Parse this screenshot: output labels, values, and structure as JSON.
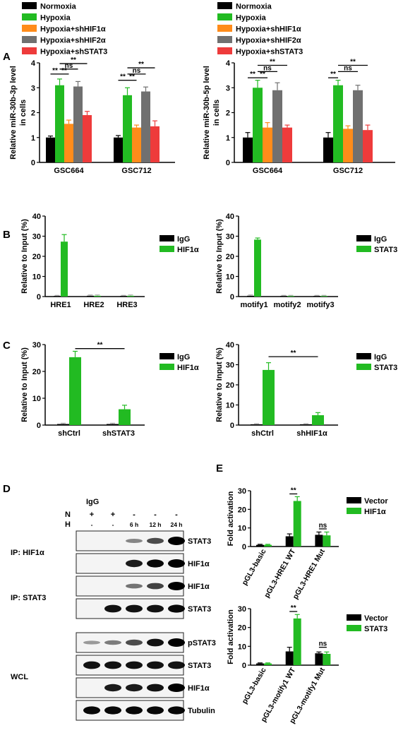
{
  "colors": {
    "black": "#000000",
    "green": "#22bb22",
    "orange": "#ff8c1a",
    "gray": "#707070",
    "red": "#ee3b3b",
    "lightgray": "#aaaaaa"
  },
  "panel_letters": [
    "A",
    "B",
    "C",
    "D",
    "E"
  ],
  "legend_A": [
    "Normoxia",
    "Hypoxia",
    "Hypoxia+shHIF1α",
    "Hypoxia+shHIF2α",
    "Hypoxia+shSTAT3"
  ],
  "chart_data": [
    {
      "id": "A_left",
      "type": "bar",
      "ylabel": "Relative miR-30b-3p level in cells",
      "ylabel_lines": [
        "Relative miR-30b-3p level",
        "in cells"
      ],
      "ylim": [
        0,
        4
      ],
      "yticks": [
        0,
        1,
        2,
        3,
        4
      ],
      "categories": [
        "GSC664",
        "GSC712"
      ],
      "series": [
        {
          "name": "Normoxia",
          "values": [
            1.0,
            1.0
          ],
          "err": [
            0.06,
            0.08
          ]
        },
        {
          "name": "Hypoxia",
          "values": [
            3.1,
            2.7
          ],
          "err": [
            0.25,
            0.3
          ]
        },
        {
          "name": "Hypoxia+shHIF1α",
          "values": [
            1.55,
            1.4
          ],
          "err": [
            0.15,
            0.1
          ]
        },
        {
          "name": "Hypoxia+shHIF2α",
          "values": [
            3.05,
            2.85
          ],
          "err": [
            0.2,
            0.18
          ]
        },
        {
          "name": "Hypoxia+shSTAT3",
          "values": [
            1.9,
            1.45
          ],
          "err": [
            0.15,
            0.22
          ]
        }
      ],
      "annotations": [
        {
          "label": "**",
          "x1": [
            0,
            0
          ],
          "x2": [
            0,
            1
          ],
          "y": 3.55
        },
        {
          "label": "**",
          "x1": [
            0,
            1
          ],
          "x2": [
            0,
            2
          ],
          "y": 3.55
        },
        {
          "label": "ns",
          "x1": [
            0,
            1
          ],
          "x2": [
            0,
            3
          ],
          "y": 3.75
        },
        {
          "label": "**",
          "x1": [
            0,
            1
          ],
          "x2": [
            0,
            4
          ],
          "y": 3.97
        },
        {
          "label": "**",
          "x1": [
            1,
            0
          ],
          "x2": [
            1,
            1
          ],
          "y": 3.3
        },
        {
          "label": "**",
          "x1": [
            1,
            1
          ],
          "x2": [
            1,
            2
          ],
          "y": 3.3
        },
        {
          "label": "ns",
          "x1": [
            1,
            1
          ],
          "x2": [
            1,
            3
          ],
          "y": 3.55
        },
        {
          "label": "**",
          "x1": [
            1,
            1
          ],
          "x2": [
            1,
            4
          ],
          "y": 3.8
        }
      ]
    },
    {
      "id": "A_right",
      "type": "bar",
      "ylabel": "Relative miR-30b-5p level in cells",
      "ylabel_lines": [
        "Relative miR-30b-5p level",
        "in cells"
      ],
      "ylim": [
        0,
        4
      ],
      "yticks": [
        0,
        1,
        2,
        3,
        4
      ],
      "categories": [
        "GSC664",
        "GSC712"
      ],
      "series": [
        {
          "name": "Normoxia",
          "values": [
            1.0,
            1.0
          ],
          "err": [
            0.2,
            0.2
          ]
        },
        {
          "name": "Hypoxia",
          "values": [
            3.0,
            3.1
          ],
          "err": [
            0.3,
            0.2
          ]
        },
        {
          "name": "Hypoxia+shHIF1α",
          "values": [
            1.4,
            1.35
          ],
          "err": [
            0.2,
            0.12
          ]
        },
        {
          "name": "Hypoxia+shHIF2α",
          "values": [
            2.9,
            2.9
          ],
          "err": [
            0.3,
            0.2
          ]
        },
        {
          "name": "Hypoxia+shSTAT3",
          "values": [
            1.4,
            1.3
          ],
          "err": [
            0.1,
            0.2
          ]
        }
      ],
      "annotations": [
        {
          "label": "**",
          "x1": [
            0,
            0
          ],
          "x2": [
            0,
            1
          ],
          "y": 3.4
        },
        {
          "label": "**",
          "x1": [
            0,
            1
          ],
          "x2": [
            0,
            2
          ],
          "y": 3.4
        },
        {
          "label": "ns",
          "x1": [
            0,
            1
          ],
          "x2": [
            0,
            3
          ],
          "y": 3.65
        },
        {
          "label": "**",
          "x1": [
            0,
            1
          ],
          "x2": [
            0,
            4
          ],
          "y": 3.9
        },
        {
          "label": "**",
          "x1": [
            1,
            0
          ],
          "x2": [
            1,
            1
          ],
          "y": 3.4
        },
        {
          "label": "ns",
          "x1": [
            1,
            1
          ],
          "x2": [
            1,
            3
          ],
          "y": 3.65
        },
        {
          "label": "**",
          "x1": [
            1,
            1
          ],
          "x2": [
            1,
            4
          ],
          "y": 3.9
        }
      ]
    },
    {
      "id": "B_left",
      "type": "bar",
      "ylabel": "Relative to Input (%)",
      "ylim": [
        0,
        40
      ],
      "yticks": [
        0,
        10,
        20,
        30,
        40
      ],
      "categories": [
        "HRE1",
        "HRE2",
        "HRE3"
      ],
      "series": [
        {
          "name": "IgG",
          "values": [
            0.3,
            0.4,
            0.3
          ],
          "err": [
            0.3,
            0.4,
            0.3
          ]
        },
        {
          "name": "HIF1α",
          "values": [
            27.3,
            0.4,
            0.4
          ],
          "err": [
            3.5,
            0.4,
            0.4
          ]
        }
      ]
    },
    {
      "id": "B_right",
      "type": "bar",
      "ylabel": "Relative to Input (%)",
      "ylim": [
        0,
        40
      ],
      "yticks": [
        0,
        10,
        20,
        30,
        40
      ],
      "categories": [
        "motify1",
        "motify2",
        "motify3"
      ],
      "series": [
        {
          "name": "IgG",
          "values": [
            0.4,
            0.3,
            0.3
          ],
          "err": [
            0.4,
            0.3,
            0.3
          ]
        },
        {
          "name": "STAT3",
          "values": [
            28.3,
            0.3,
            0.3
          ],
          "err": [
            0.8,
            0.3,
            0.3
          ]
        }
      ]
    },
    {
      "id": "C_left",
      "type": "bar",
      "ylabel": "Relative to Input (%)",
      "ylim": [
        0,
        30
      ],
      "yticks": [
        0,
        10,
        20,
        30
      ],
      "categories": [
        "shCtrl",
        "shSTAT3"
      ],
      "series": [
        {
          "name": "IgG",
          "values": [
            0.4,
            0.4
          ],
          "err": [
            0.3,
            0.3
          ]
        },
        {
          "name": "HIF1α",
          "values": [
            25.3,
            5.9
          ],
          "err": [
            2.2,
            1.5
          ]
        }
      ],
      "annotations": [
        {
          "label": "**",
          "x1": [
            0,
            1
          ],
          "x2": [
            1,
            1
          ],
          "y": 28.5
        }
      ]
    },
    {
      "id": "C_right",
      "type": "bar",
      "ylabel": "Relative to Input (%)",
      "ylim": [
        0,
        40
      ],
      "yticks": [
        0,
        10,
        20,
        30,
        40
      ],
      "categories": [
        "shCtrl",
        "shHIF1α"
      ],
      "series": [
        {
          "name": "IgG",
          "values": [
            0.4,
            0.4
          ],
          "err": [
            0.3,
            0.3
          ]
        },
        {
          "name": "STAT3",
          "values": [
            27.4,
            4.9
          ],
          "err": [
            3.6,
            1.3
          ]
        }
      ],
      "annotations": [
        {
          "label": "**",
          "x1": [
            0,
            1
          ],
          "x2": [
            1,
            1
          ],
          "y": 34
        }
      ]
    },
    {
      "id": "E_top",
      "type": "bar",
      "ylabel": "Fold activation",
      "ylim": [
        0,
        30
      ],
      "yticks": [
        0,
        10,
        20,
        30
      ],
      "categories": [
        "pGL3-basic",
        "pGL3-HRE1 WT",
        "pGL3-HRE1 Mut"
      ],
      "series": [
        {
          "name": "Vector",
          "values": [
            0.9,
            5.5,
            6.3
          ],
          "err": [
            0.3,
            1.3,
            1.5
          ]
        },
        {
          "name": "HIF1α",
          "values": [
            0.9,
            24.5,
            6.0
          ],
          "err": [
            0.3,
            2.3,
            1.8
          ]
        }
      ],
      "annotations": [
        {
          "label": "**",
          "x1": [
            1,
            0
          ],
          "x2": [
            1,
            1
          ],
          "y": 28.3
        },
        {
          "label": "ns",
          "x1": [
            2,
            0
          ],
          "x2": [
            2,
            1
          ],
          "y": 9.5
        }
      ]
    },
    {
      "id": "E_bottom",
      "type": "bar",
      "ylabel": "Fold activation",
      "ylim": [
        0,
        30
      ],
      "yticks": [
        0,
        10,
        20,
        30
      ],
      "categories": [
        "pGL3-basic",
        "pGL3-motify1 WT",
        "pGL3-motify1 Mut"
      ],
      "series": [
        {
          "name": "Vector",
          "values": [
            0.9,
            7.3,
            6.3
          ],
          "err": [
            0.3,
            2.2,
            0.7
          ]
        },
        {
          "name": "STAT3",
          "values": [
            0.9,
            24.8,
            6.0
          ],
          "err": [
            0.3,
            2.1,
            1.0
          ]
        }
      ],
      "annotations": [
        {
          "label": "**",
          "x1": [
            1,
            0
          ],
          "x2": [
            1,
            1
          ],
          "y": 28.5
        },
        {
          "label": "ns",
          "x1": [
            2,
            0
          ],
          "x2": [
            2,
            1
          ],
          "y": 9.5
        }
      ]
    }
  ],
  "western": {
    "igg_label": "IgG",
    "n_label": "N",
    "h_label": "H",
    "n_row": [
      "+",
      "+",
      "-",
      "-",
      "-"
    ],
    "h_row": [
      "-",
      "-",
      "6 h",
      "12 h",
      "24 h"
    ],
    "groups": [
      {
        "label": "IP: HIF1α",
        "blots": [
          {
            "label": "STAT3",
            "intensity": [
              0.0,
              0.0,
              0.25,
              0.55,
              1.0
            ]
          },
          {
            "label": "HIF1α",
            "intensity": [
              0.0,
              0.0,
              0.8,
              0.9,
              1.0
            ]
          }
        ]
      },
      {
        "label": "IP: STAT3",
        "blots": [
          {
            "label": "HIF1α",
            "intensity": [
              0.0,
              0.0,
              0.35,
              0.6,
              1.0
            ]
          },
          {
            "label": "STAT3",
            "intensity": [
              0.0,
              0.85,
              0.85,
              0.85,
              0.9
            ]
          }
        ]
      },
      {
        "label": "WCL",
        "blots": [
          {
            "label": "pSTAT3",
            "intensity": [
              0.15,
              0.3,
              0.55,
              0.85,
              1.0
            ]
          },
          {
            "label": "STAT3",
            "intensity": [
              0.85,
              0.85,
              0.85,
              0.85,
              0.85
            ]
          },
          {
            "label": "HIF1α",
            "intensity": [
              0.0,
              0.8,
              0.8,
              0.85,
              1.0
            ]
          },
          {
            "label": "Tubulin",
            "intensity": [
              0.9,
              0.9,
              0.9,
              0.9,
              0.9
            ]
          }
        ]
      }
    ]
  }
}
